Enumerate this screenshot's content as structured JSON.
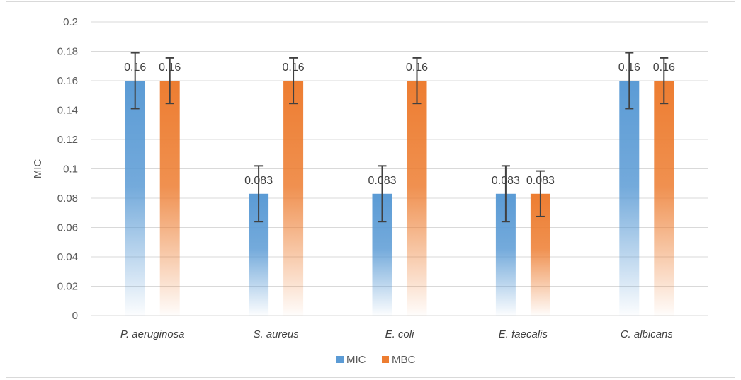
{
  "chart_data": {
    "type": "bar",
    "title": "",
    "xlabel": "",
    "ylabel": "MIC",
    "ylim": [
      0,
      0.2
    ],
    "yticks": [
      "0",
      "0.02",
      "0.04",
      "0.06",
      "0.08",
      "0.1",
      "0.12",
      "0.14",
      "0.16",
      "0.18",
      "0.2"
    ],
    "categories": [
      "P. aeruginosa",
      "S. aureus",
      "E. coli",
      "E. faecalis",
      "C. albicans"
    ],
    "grid": true,
    "legend_position": "bottom",
    "series": [
      {
        "name": "MIC",
        "color": "#5b9bd5",
        "values": [
          0.16,
          0.083,
          0.083,
          0.083,
          0.16
        ],
        "labels": [
          "0.16",
          "0.083",
          "0.083",
          "0.083",
          "0.16"
        ],
        "error": [
          0.019,
          0.019,
          0.019,
          0.019,
          0.019
        ]
      },
      {
        "name": "MBC",
        "color": "#ed7d31",
        "values": [
          0.16,
          0.16,
          0.16,
          0.083,
          0.16
        ],
        "labels": [
          "0.16",
          "0.16",
          "0.16",
          "0.083",
          "0.16"
        ],
        "error": [
          0.0155,
          0.0155,
          0.0155,
          0.0155,
          0.0155
        ]
      }
    ]
  }
}
